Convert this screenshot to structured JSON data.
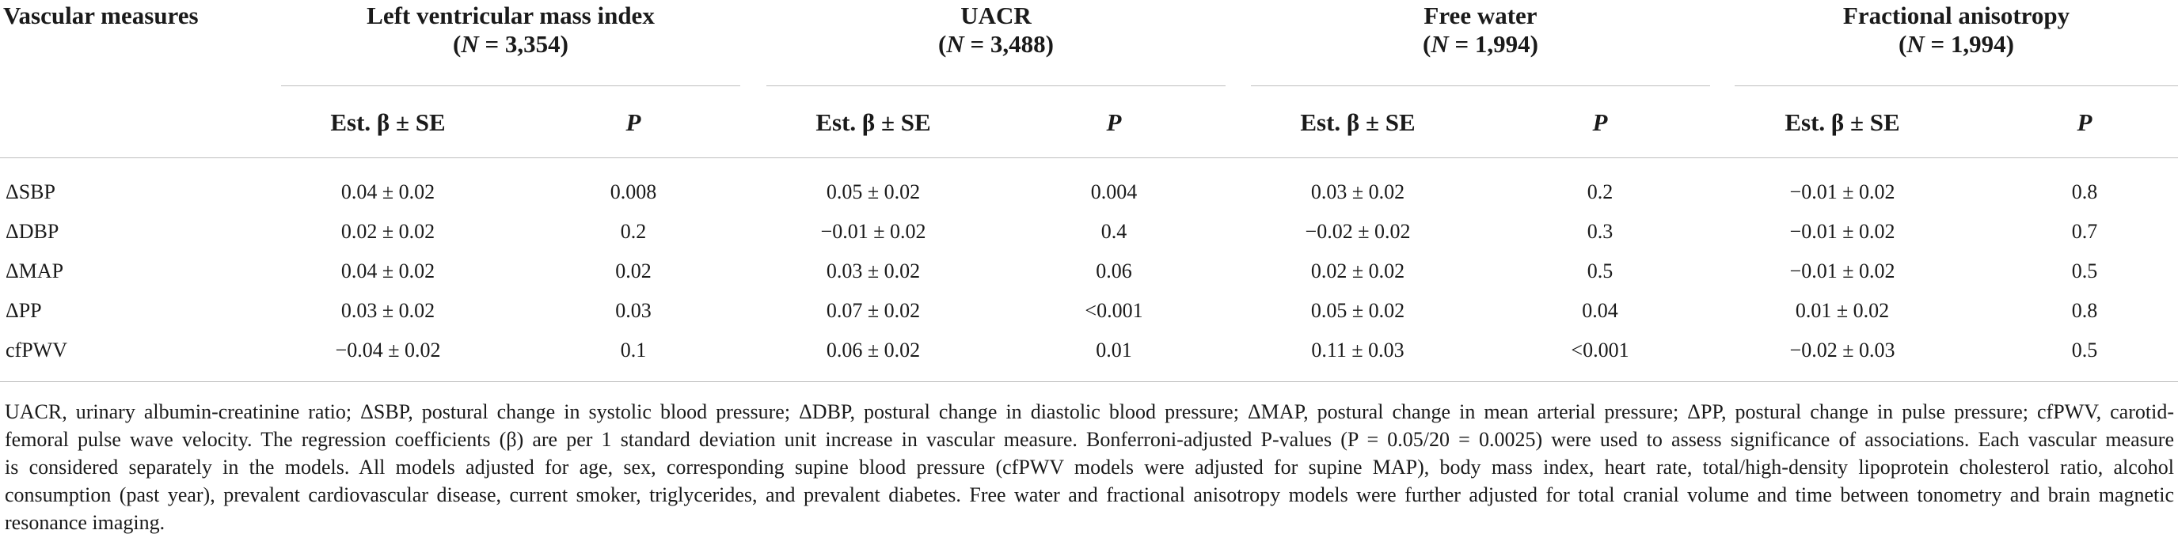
{
  "table": {
    "corner_header": "Vascular measures",
    "groups": [
      {
        "title": "Left ventricular mass index",
        "n_prefix": "N",
        "n_value": " = 3,354"
      },
      {
        "title": "UACR",
        "n_prefix": "N",
        "n_value": " = 3,488"
      },
      {
        "title": "Free water",
        "n_prefix": "N",
        "n_value": " = 1,994"
      },
      {
        "title": "Fractional anisotropy",
        "n_prefix": "N",
        "n_value": " = 1,994"
      }
    ],
    "sub_est": "Est. β ± SE",
    "sub_p": "P",
    "rows": [
      {
        "label": "ΔSBP",
        "cells": [
          "0.04 ± 0.02",
          "0.008",
          "0.05 ± 0.02",
          "0.004",
          "0.03 ± 0.02",
          "0.2",
          "−0.01 ± 0.02",
          "0.8"
        ]
      },
      {
        "label": "ΔDBP",
        "cells": [
          "0.02 ± 0.02",
          "0.2",
          "−0.01 ± 0.02",
          "0.4",
          "−0.02 ± 0.02",
          "0.3",
          "−0.01 ± 0.02",
          "0.7"
        ]
      },
      {
        "label": "ΔMAP",
        "cells": [
          "0.04 ± 0.02",
          "0.02",
          "0.03 ± 0.02",
          "0.06",
          "0.02 ± 0.02",
          "0.5",
          "−0.01 ± 0.02",
          "0.5"
        ]
      },
      {
        "label": "ΔPP",
        "cells": [
          "0.03 ± 0.02",
          "0.03",
          "0.07 ± 0.02",
          "<0.001",
          "0.05 ± 0.02",
          "0.04",
          "0.01 ± 0.02",
          "0.8"
        ]
      },
      {
        "label": "cfPWV",
        "cells": [
          "−0.04 ± 0.02",
          "0.1",
          "0.06 ± 0.02",
          "0.01",
          "0.11 ± 0.03",
          "<0.001",
          "−0.02 ± 0.03",
          "0.5"
        ]
      }
    ]
  },
  "footnote": {
    "lines": [
      "UACR, urinary albumin-creatinine ratio; ΔSBP, postural change in systolic blood pressure; ΔDBP, postural change in diastolic blood pressure; ΔMAP, postural change in mean arterial pressure; ΔPP, postural change in pulse pressure; cfPWV, carotid-",
      "femoral pulse wave velocity. The regression coefficients (β) are per 1 standard deviation unit increase in vascular measure. Bonferroni-adjusted P-values (P = 0.05/20 = 0.0025) were used to assess significance of associations. Each vascular measure",
      "is considered separately in the models. All models adjusted for age, sex, corresponding supine blood pressure (cfPWV models were adjusted for supine MAP), body mass index, heart rate, total/high-density lipoprotein cholesterol ratio, alcohol",
      "consumption (past year), prevalent cardiovascular disease, current smoker, triglycerides, and prevalent diabetes. Free water and fractional anisotropy models were further adjusted for total cranial volume and time between tonometry and brain magnetic",
      "resonance imaging."
    ]
  }
}
